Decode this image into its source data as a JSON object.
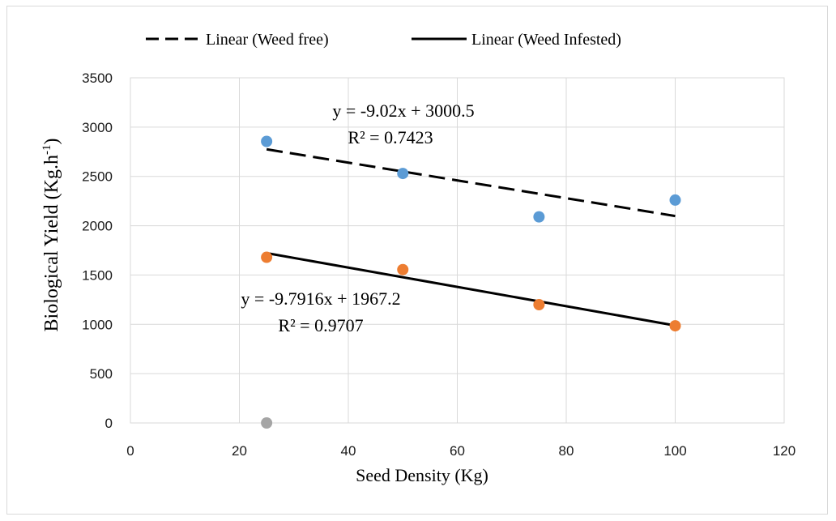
{
  "chart_data": {
    "type": "scatter",
    "xlabel": "Seed Density (Kg)",
    "ylabel": "Biological Yield (Kg.h-1)",
    "ylabel_parts": {
      "main": "Biological Yield (Kg.h",
      "sup": "-1",
      "end": ")"
    },
    "xlim": [
      0,
      120
    ],
    "ylim": [
      0,
      3500
    ],
    "x_ticks": [
      0,
      20,
      40,
      60,
      80,
      100,
      120
    ],
    "y_ticks": [
      0,
      500,
      1000,
      1500,
      2000,
      2500,
      3000,
      3500
    ],
    "grid": true,
    "legend_position": "top",
    "series": [
      {
        "key": "weed_free",
        "color": "#5b9bd5",
        "points": [
          [
            25,
            2855
          ],
          [
            50,
            2530
          ],
          [
            75,
            2090
          ],
          [
            100,
            2260
          ]
        ]
      },
      {
        "key": "weed_infested",
        "color": "#ed7d31",
        "points": [
          [
            25,
            1680
          ],
          [
            50,
            1555
          ],
          [
            75,
            1200
          ],
          [
            100,
            985
          ]
        ]
      },
      {
        "key": "extra",
        "color": "#a5a5a5",
        "points": [
          [
            25,
            0
          ]
        ]
      }
    ],
    "trendlines": [
      {
        "name": "Linear (Weed free)",
        "style": "dashed",
        "color": "#000000",
        "slope": -9.02,
        "intercept": 3000.5,
        "x_range": [
          25,
          100
        ],
        "equation": "y = -9.02x + 3000.5",
        "r2": "R² = 0.7423"
      },
      {
        "name": "Linear (Weed Infested)",
        "style": "solid",
        "color": "#000000",
        "slope": -9.7916,
        "intercept": 1967.2,
        "x_range": [
          25,
          100
        ],
        "equation": "y = -9.7916x + 1967.2",
        "r2": "R² = 0.9707"
      }
    ]
  }
}
